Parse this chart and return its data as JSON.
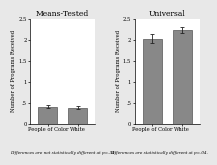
{
  "panels": [
    {
      "title": "Means-Tested",
      "categories": [
        "People of Color",
        "White"
      ],
      "values": [
        0.4,
        0.38
      ],
      "errors": [
        0.03,
        0.025
      ],
      "ylim": [
        0,
        2.5
      ],
      "yticks": [
        0.0,
        0.5,
        1.0,
        1.5,
        2.0,
        2.5
      ],
      "ytick_labels": [
        "0",
        ".5",
        "1",
        "1.5",
        "2",
        "2.5"
      ],
      "ylabel": "Number of Programs Received",
      "footnote": "Differences are not statistically different at p=.34."
    },
    {
      "title": "Universal",
      "categories": [
        "People of Color",
        "White"
      ],
      "values": [
        2.02,
        2.22
      ],
      "errors": [
        0.1,
        0.07
      ],
      "ylim": [
        0,
        2.5
      ],
      "yticks": [
        0.0,
        0.5,
        1.0,
        1.5,
        2.0,
        2.5
      ],
      "ytick_labels": [
        "0",
        ".5",
        "1",
        "1.5",
        "2",
        "2.5"
      ],
      "ylabel": "Number of Programs Received",
      "footnote": "Differences are statistically different at p=.04."
    }
  ],
  "bar_color": "#888888",
  "bar_edge_color": "#555555",
  "fig_background_color": "#e8e8e8",
  "plot_background_color": "#ffffff",
  "bar_width": 0.65,
  "title_fontsize": 5.5,
  "label_fontsize": 3.8,
  "tick_fontsize": 3.8,
  "footnote_fontsize": 3.0
}
